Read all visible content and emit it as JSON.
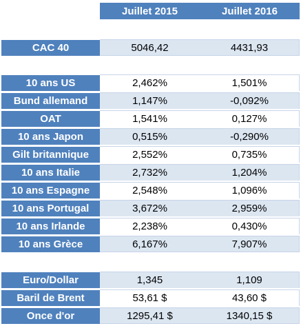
{
  "header": {
    "col1": "Juillet 2015",
    "col2": "Juillet 2016"
  },
  "index": [
    {
      "label": "CAC 40",
      "v1": "5046,42",
      "v2": "4431,93"
    }
  ],
  "bonds": [
    {
      "label": "10 ans US",
      "v1": "2,462%",
      "v2": "1,501%"
    },
    {
      "label": "Bund allemand",
      "v1": "1,147%",
      "v2": "-0,092%"
    },
    {
      "label": "OAT",
      "v1": "1,541%",
      "v2": "0,127%"
    },
    {
      "label": "10 ans Japon",
      "v1": "0,515%",
      "v2": "-0,290%"
    },
    {
      "label": "Gilt britannique",
      "v1": "2,552%",
      "v2": "0,735%"
    },
    {
      "label": "10 ans Italie",
      "v1": "2,732%",
      "v2": "1,204%"
    },
    {
      "label": "10 ans Espagne",
      "v1": "2,548%",
      "v2": "1,096%"
    },
    {
      "label": "10 ans Portugal",
      "v1": "3,672%",
      "v2": "2,959%"
    },
    {
      "label": "10 ans Irlande",
      "v1": "2,238%",
      "v2": "0,430%"
    },
    {
      "label": "10 ans Grèce",
      "v1": "6,167%",
      "v2": "7,907%"
    }
  ],
  "assets": [
    {
      "label": "Euro/Dollar",
      "v1": "1,345",
      "v2": "1,109"
    },
    {
      "label": "Baril de Brent",
      "v1": "53,61 $",
      "v2": "43,60 $"
    },
    {
      "label": "Once d'or",
      "v1": "1295,41 $",
      "v2": "1340,15 $"
    }
  ]
}
